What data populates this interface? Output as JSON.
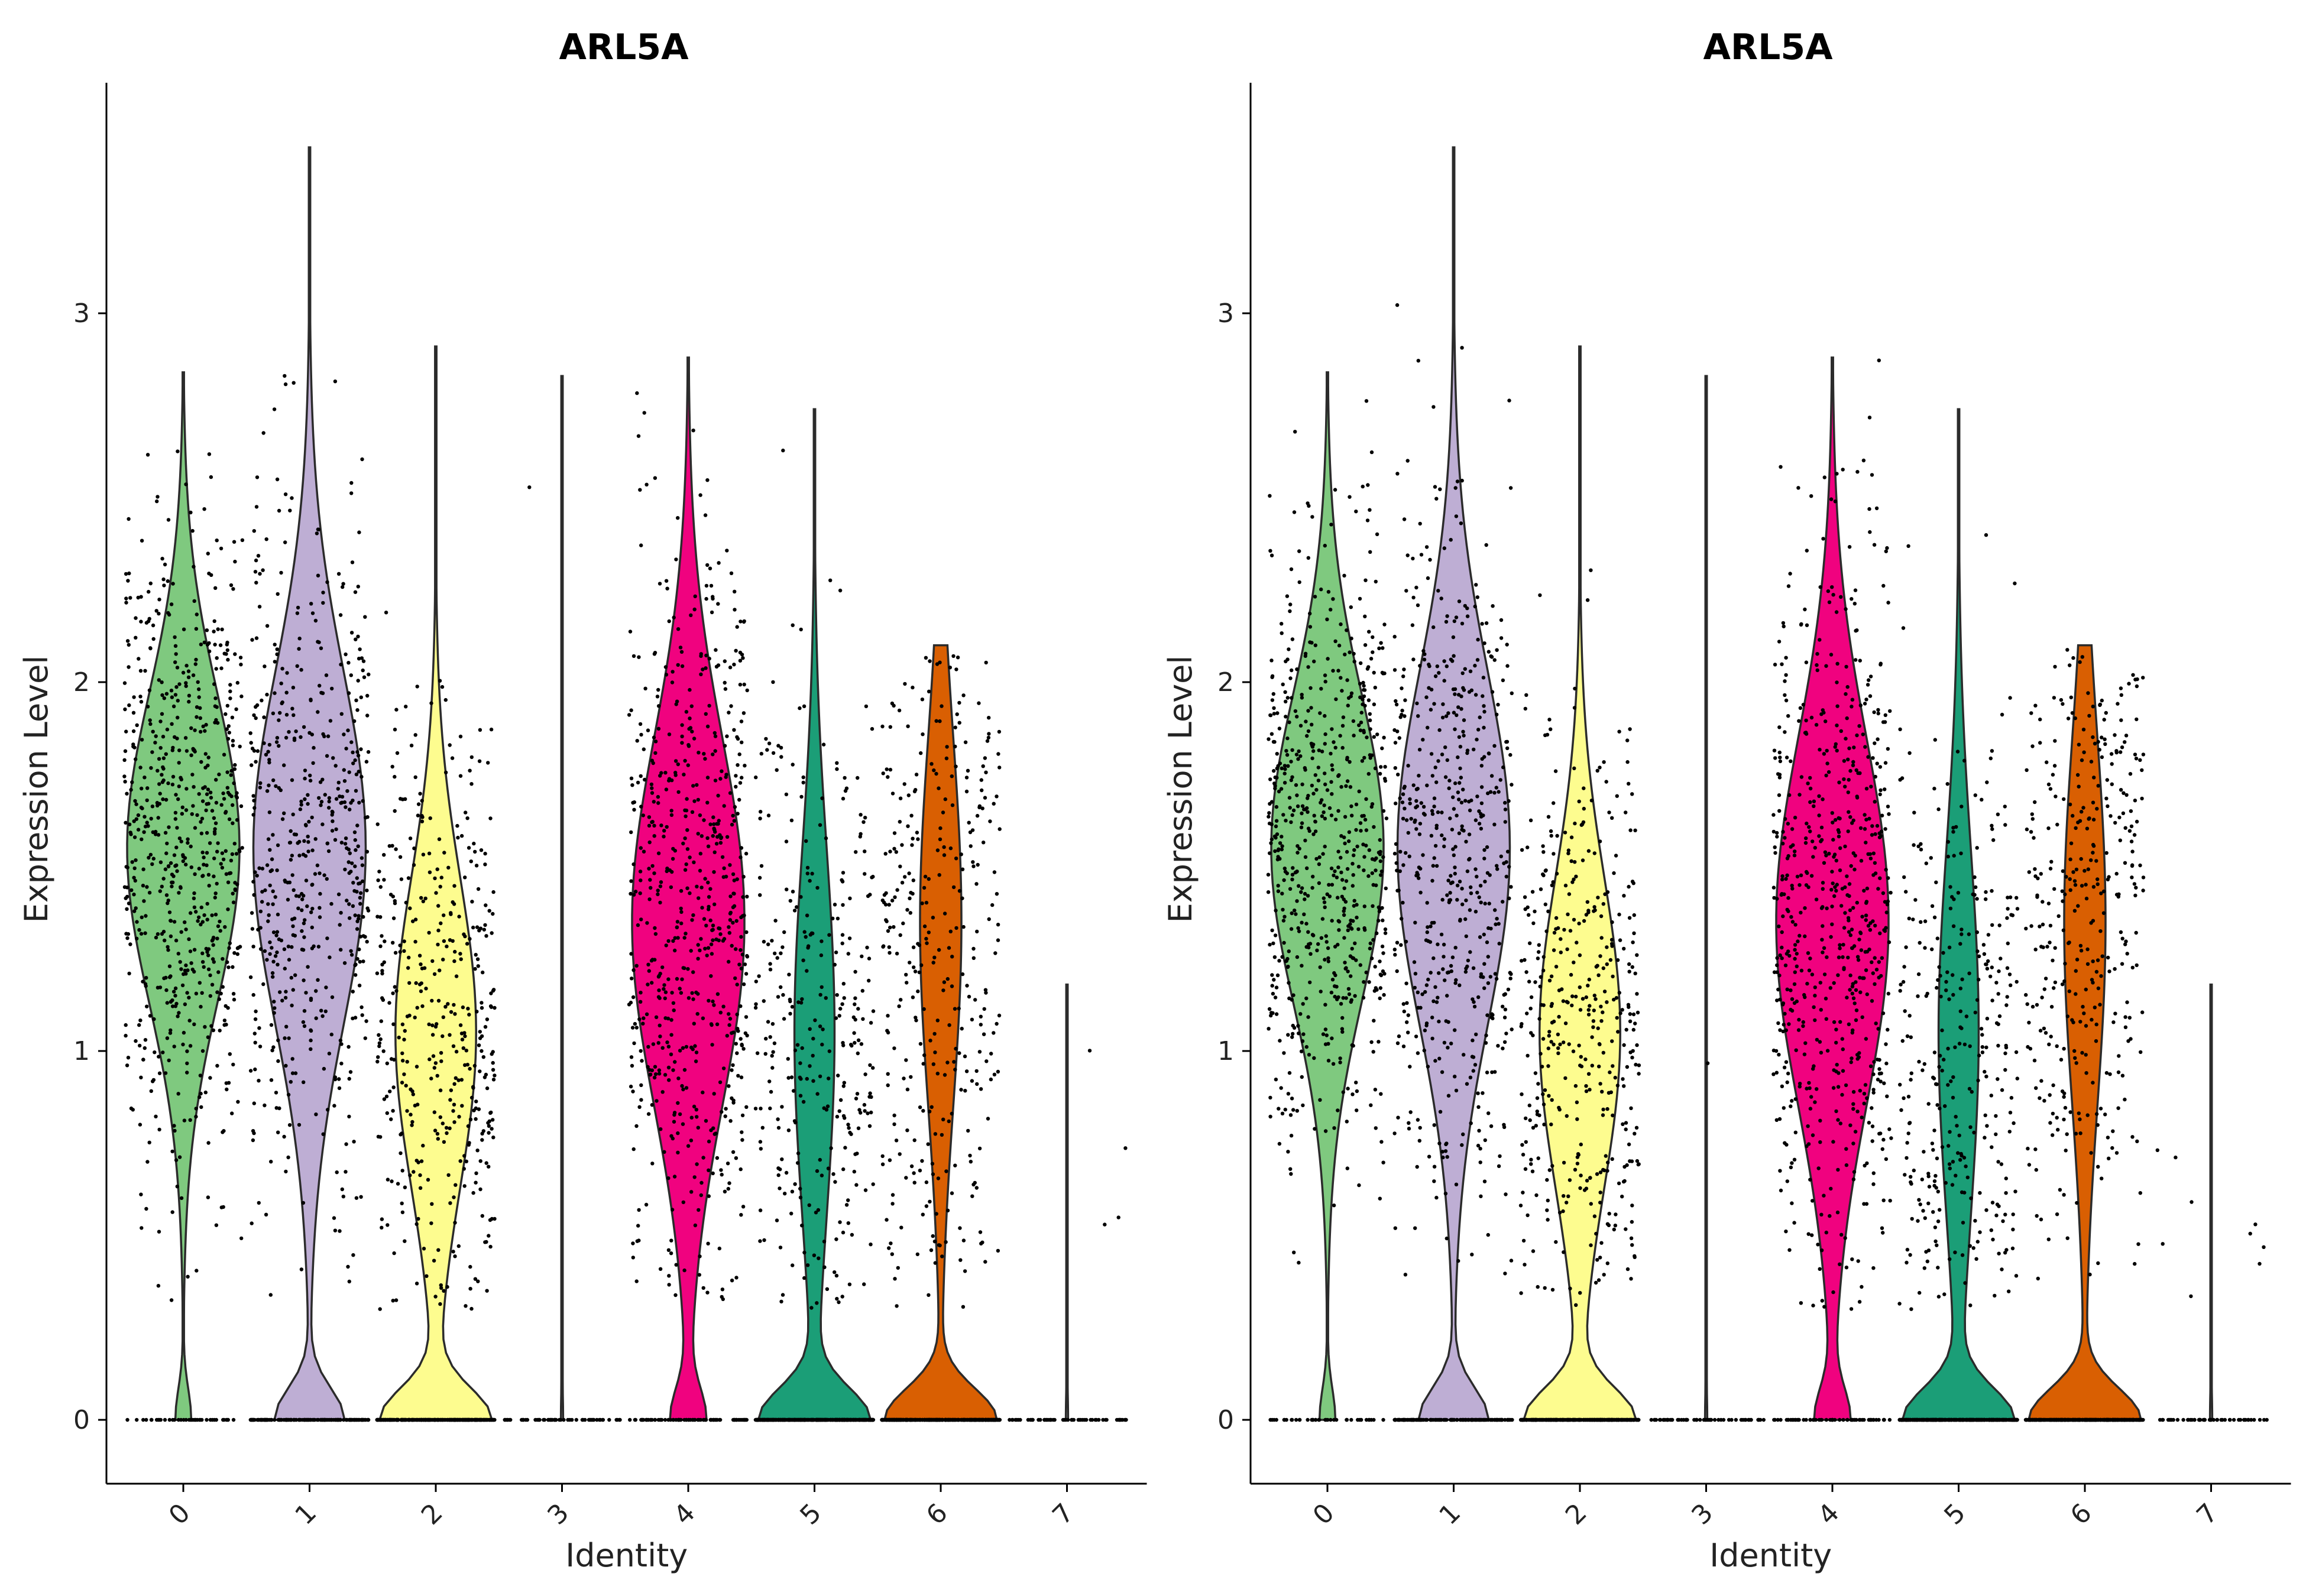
{
  "chart_data": [
    {
      "type": "violin",
      "title": "ARL5A",
      "xlabel": "Identity",
      "ylabel": "Expression Level",
      "categories": [
        "0",
        "1",
        "2",
        "3",
        "4",
        "5",
        "6",
        "7"
      ],
      "yticks": [
        "0",
        "1",
        "2",
        "3"
      ],
      "ylim": [
        -0.17,
        3.7
      ],
      "colors": [
        "#7fc97f",
        "#beaed4",
        "#fdfc8f",
        "#1a1a1a",
        "#f0027f",
        "#1b9e77",
        "#d95f02",
        "#1a1a1a"
      ],
      "groups": [
        {
          "identity": "0",
          "max": 2.84,
          "zero_fraction": 0.06,
          "center": 1.55,
          "spread": 0.42
        },
        {
          "identity": "1",
          "max": 3.45,
          "zero_fraction": 0.22,
          "center": 1.55,
          "spread": 0.48
        },
        {
          "identity": "2",
          "max": 2.91,
          "zero_fraction": 0.38,
          "center": 1.05,
          "spread": 0.42
        },
        {
          "identity": "3",
          "max": 2.83,
          "zero_fraction": 0.97,
          "center": 1.6,
          "spread": 0.55
        },
        {
          "identity": "4",
          "max": 2.88,
          "zero_fraction": 0.12,
          "center": 1.35,
          "spread": 0.5
        },
        {
          "identity": "5",
          "max": 2.74,
          "zero_fraction": 0.55,
          "center": 1.05,
          "spread": 0.5
        },
        {
          "identity": "6",
          "max": 2.1,
          "zero_fraction": 0.55,
          "center": 1.35,
          "spread": 0.5
        },
        {
          "identity": "7",
          "max": 1.18,
          "zero_fraction": 0.9,
          "center": 0.7,
          "spread": 0.3
        }
      ],
      "grid": false,
      "legend": "none"
    },
    {
      "type": "violin",
      "title": "ARL5A",
      "xlabel": "Identity",
      "ylabel": "Expression Level",
      "categories": [
        "0",
        "1",
        "2",
        "3",
        "4",
        "5",
        "6",
        "7"
      ],
      "yticks": [
        "0",
        "1",
        "2",
        "3"
      ],
      "ylim": [
        -0.17,
        3.7
      ],
      "colors": [
        "#7fc97f",
        "#beaed4",
        "#fdfc8f",
        "#1a1a1a",
        "#f0027f",
        "#1b9e77",
        "#d95f02",
        "#1a1a1a"
      ],
      "groups": [
        {
          "identity": "0",
          "max": 2.84,
          "zero_fraction": 0.06,
          "center": 1.55,
          "spread": 0.42
        },
        {
          "identity": "1",
          "max": 3.45,
          "zero_fraction": 0.22,
          "center": 1.55,
          "spread": 0.48
        },
        {
          "identity": "2",
          "max": 2.91,
          "zero_fraction": 0.38,
          "center": 1.05,
          "spread": 0.42
        },
        {
          "identity": "3",
          "max": 2.83,
          "zero_fraction": 0.97,
          "center": 1.6,
          "spread": 0.55
        },
        {
          "identity": "4",
          "max": 2.88,
          "zero_fraction": 0.12,
          "center": 1.35,
          "spread": 0.5
        },
        {
          "identity": "5",
          "max": 2.74,
          "zero_fraction": 0.55,
          "center": 1.05,
          "spread": 0.5
        },
        {
          "identity": "6",
          "max": 2.1,
          "zero_fraction": 0.55,
          "center": 1.35,
          "spread": 0.5
        },
        {
          "identity": "7",
          "max": 1.18,
          "zero_fraction": 0.9,
          "center": 0.7,
          "spread": 0.3
        }
      ],
      "grid": false,
      "legend": "none"
    }
  ]
}
